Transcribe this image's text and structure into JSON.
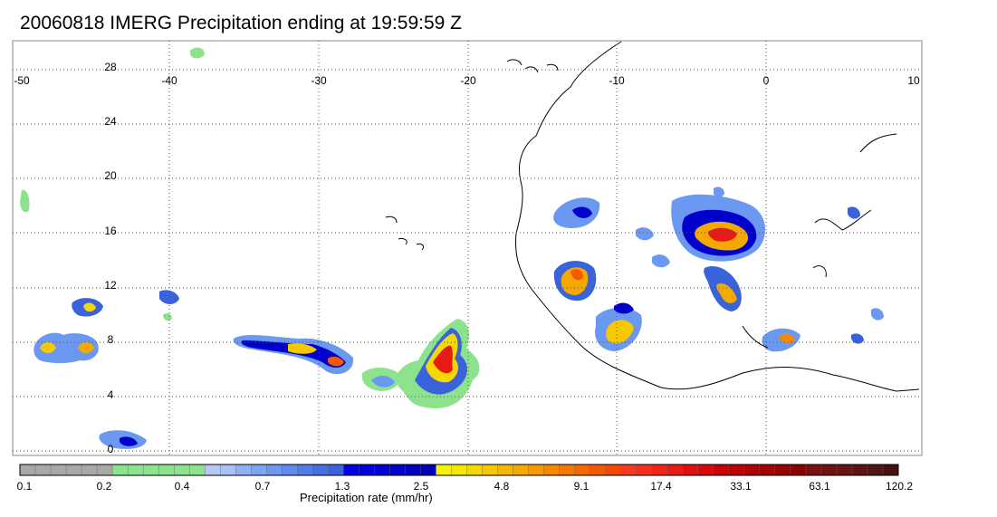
{
  "title": "20060818 IMERG Precipitation ending at 19:59:59 Z",
  "map": {
    "lon_labels": [
      "-50",
      "-40",
      "-30",
      "-20",
      "-10",
      "0",
      "10"
    ],
    "lat_labels": [
      "28",
      "24",
      "20",
      "16",
      "12",
      "8",
      "4",
      "0"
    ],
    "gridlines": "dotted",
    "coastline_color": "#000000"
  },
  "colorbar": {
    "label": "Precipitation rate (mm/hr)",
    "tick_labels": [
      "0.1",
      "0.2",
      "0.4",
      "0.7",
      "1.3",
      "2.5",
      "4.8",
      "9.1",
      "17.4",
      "33.1",
      "63.1",
      "120.2"
    ],
    "colors": [
      "#a8a8a8",
      "#a8a8a8",
      "#a8a8a8",
      "#a8a8a8",
      "#a8a8a8",
      "#a8a8a8",
      "#8de38d",
      "#8de38d",
      "#8de38d",
      "#8de38d",
      "#8de38d",
      "#8de38d",
      "#b8c8f5",
      "#a8c2f8",
      "#8fb2f6",
      "#7aa6f4",
      "#6b99f1",
      "#5f8cec",
      "#527de6",
      "#4570e0",
      "#3a62db",
      "#0000e6",
      "#0000df",
      "#0000d6",
      "#0000cc",
      "#0000c2",
      "#0000b8",
      "#f5f500",
      "#f5e800",
      "#f5d800",
      "#f5c800",
      "#f5b800",
      "#f5a800",
      "#f59a00",
      "#f58800",
      "#f57800",
      "#f56800",
      "#f55800",
      "#f54800",
      "#f53a20",
      "#f52e20",
      "#f22418",
      "#e81a14",
      "#df1010",
      "#d60808",
      "#c80000",
      "#bc0000",
      "#b00000",
      "#a40000",
      "#980000",
      "#8c0000",
      "#7a1010",
      "#701212",
      "#661414",
      "#5c1414",
      "#521414",
      "#481212"
    ]
  }
}
